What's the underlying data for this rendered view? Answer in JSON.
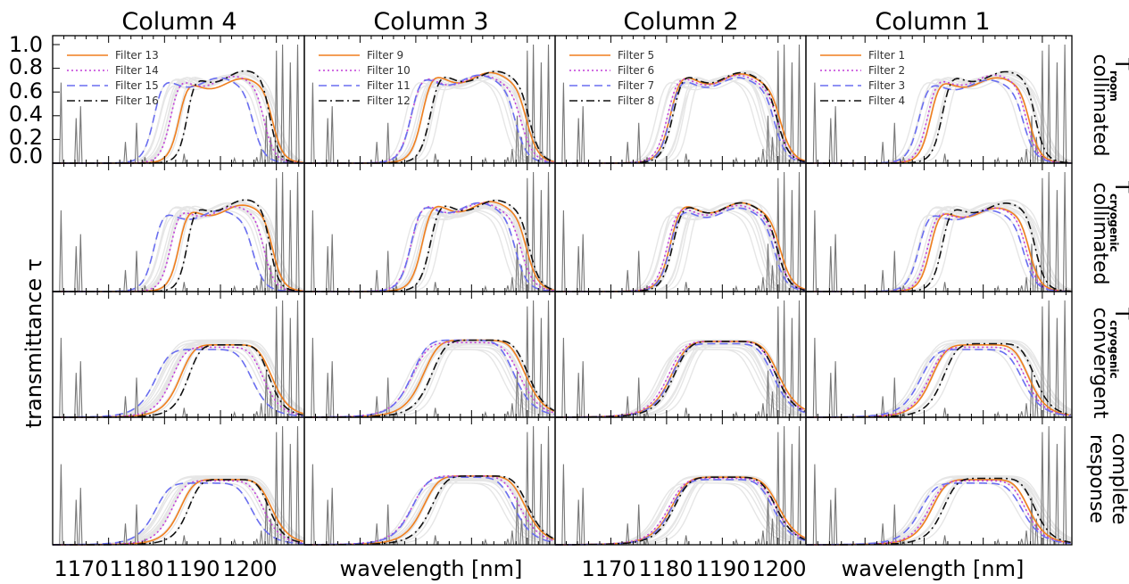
{
  "figure": {
    "column_titles": [
      "Column 4",
      "Column 3",
      "Column 2",
      "Column 1"
    ],
    "row_labels": [
      {
        "lines": [
          "collimated"
        ],
        "T_sub": "room"
      },
      {
        "lines": [
          "collimated"
        ],
        "T_sub": "cryogenic"
      },
      {
        "lines": [
          "convergent"
        ],
        "T_sub": "cryogenic"
      },
      {
        "lines": [
          "complete",
          "response"
        ],
        "T_sub": ""
      }
    ],
    "T_symbol": "T",
    "ylabel": "transmittance τ",
    "xlabel": "wavelength [nm]",
    "x_tick_labels": [
      "1170",
      "1180",
      "1190",
      "1200"
    ],
    "y_tick_labels": [
      "0.0",
      "0.2",
      "0.4",
      "0.6",
      "0.8",
      "1.0"
    ]
  },
  "chart_data": {
    "type": "line",
    "x_range": [
      1160,
      1205
    ],
    "y_range": [
      0,
      1.0
    ],
    "grid": false,
    "legend_placement": "top-left",
    "background_curves_color": "#e6e6e6",
    "sky_line_color": "#777777",
    "styles": [
      {
        "color": "#f07f1e",
        "dash": "solid"
      },
      {
        "color": "#c23fd9",
        "dash": "dotted"
      },
      {
        "color": "#6a6ef0",
        "dash": "dashed"
      },
      {
        "color": "#111111",
        "dash": "dashdot"
      }
    ],
    "panel_legends": [
      [
        "Filter 13",
        "Filter 14",
        "Filter 15",
        "Filter 16"
      ],
      [
        "Filter 9",
        "Filter 10",
        "Filter 11",
        "Filter 12"
      ],
      [
        "Filter 5",
        "Filter 6",
        "Filter 7",
        "Filter 8"
      ],
      [
        "Filter 1",
        "Filter 2",
        "Filter 3",
        "Filter 4"
      ]
    ],
    "filters": [
      {
        "center": 1189.5,
        "fwhm": 17,
        "peak": [
          0.68,
          0.66,
          0.62,
          0.55
        ],
        "skew": -0.1
      },
      {
        "center": 1189.0,
        "fwhm": 17,
        "peak": [
          0.7,
          0.66,
          0.6,
          0.54
        ],
        "skew": 0
      },
      {
        "center": 1188.0,
        "fwhm": 18,
        "peak": [
          0.66,
          0.64,
          0.58,
          0.52
        ],
        "skew": 0.1
      },
      {
        "center": 1191.0,
        "fwhm": 16,
        "peak": [
          0.73,
          0.7,
          0.63,
          0.56
        ],
        "skew": -0.2
      },
      {
        "center": 1190.5,
        "fwhm": 20,
        "peak": [
          0.71,
          0.7,
          0.65,
          0.57
        ],
        "skew": 0
      },
      {
        "center": 1190.0,
        "fwhm": 20,
        "peak": [
          0.7,
          0.68,
          0.65,
          0.56
        ],
        "skew": 0
      },
      {
        "center": 1190.0,
        "fwhm": 19,
        "peak": [
          0.68,
          0.66,
          0.63,
          0.55
        ],
        "skew": 0
      },
      {
        "center": 1190.5,
        "fwhm": 19,
        "peak": [
          0.72,
          0.7,
          0.65,
          0.57
        ],
        "skew": 0
      },
      {
        "center": 1190.5,
        "fwhm": 19,
        "peak": [
          0.72,
          0.71,
          0.66,
          0.58
        ],
        "skew": 0
      },
      {
        "center": 1189.0,
        "fwhm": 20,
        "peak": [
          0.7,
          0.7,
          0.64,
          0.58
        ],
        "skew": 0
      },
      {
        "center": 1188.5,
        "fwhm": 19,
        "peak": [
          0.7,
          0.7,
          0.66,
          0.57
        ],
        "skew": 0
      },
      {
        "center": 1191.5,
        "fwhm": 18,
        "peak": [
          0.73,
          0.72,
          0.66,
          0.58
        ],
        "skew": 0
      },
      {
        "center": 1191.0,
        "fwhm": 17,
        "peak": [
          0.67,
          0.68,
          0.62,
          0.55
        ],
        "skew": 0.2
      },
      {
        "center": 1189.5,
        "fwhm": 17,
        "peak": [
          0.69,
          0.67,
          0.6,
          0.54
        ],
        "skew": 0
      },
      {
        "center": 1187.0,
        "fwhm": 18,
        "peak": [
          0.68,
          0.64,
          0.58,
          0.52
        ],
        "skew": -0.2
      },
      {
        "center": 1191.5,
        "fwhm": 15,
        "peak": [
          0.73,
          0.72,
          0.62,
          0.55
        ],
        "skew": 0.3
      }
    ],
    "sky_lines": [
      {
        "x": 1161.5,
        "y": 0.68
      },
      {
        "x": 1164.2,
        "y": 0.38
      },
      {
        "x": 1165.0,
        "y": 0.48
      },
      {
        "x": 1173.0,
        "y": 0.18
      },
      {
        "x": 1175.0,
        "y": 0.34
      },
      {
        "x": 1176.5,
        "y": 0.05
      },
      {
        "x": 1183.5,
        "y": 0.08
      },
      {
        "x": 1192.5,
        "y": 0.04
      },
      {
        "x": 1196.5,
        "y": 0.05
      },
      {
        "x": 1197.3,
        "y": 0.12
      },
      {
        "x": 1198.2,
        "y": 0.4
      },
      {
        "x": 1199.0,
        "y": 0.22
      },
      {
        "x": 1200.0,
        "y": 0.95
      },
      {
        "x": 1201.1,
        "y": 1.0
      },
      {
        "x": 1202.5,
        "y": 0.85
      },
      {
        "x": 1203.8,
        "y": 1.0
      }
    ]
  }
}
